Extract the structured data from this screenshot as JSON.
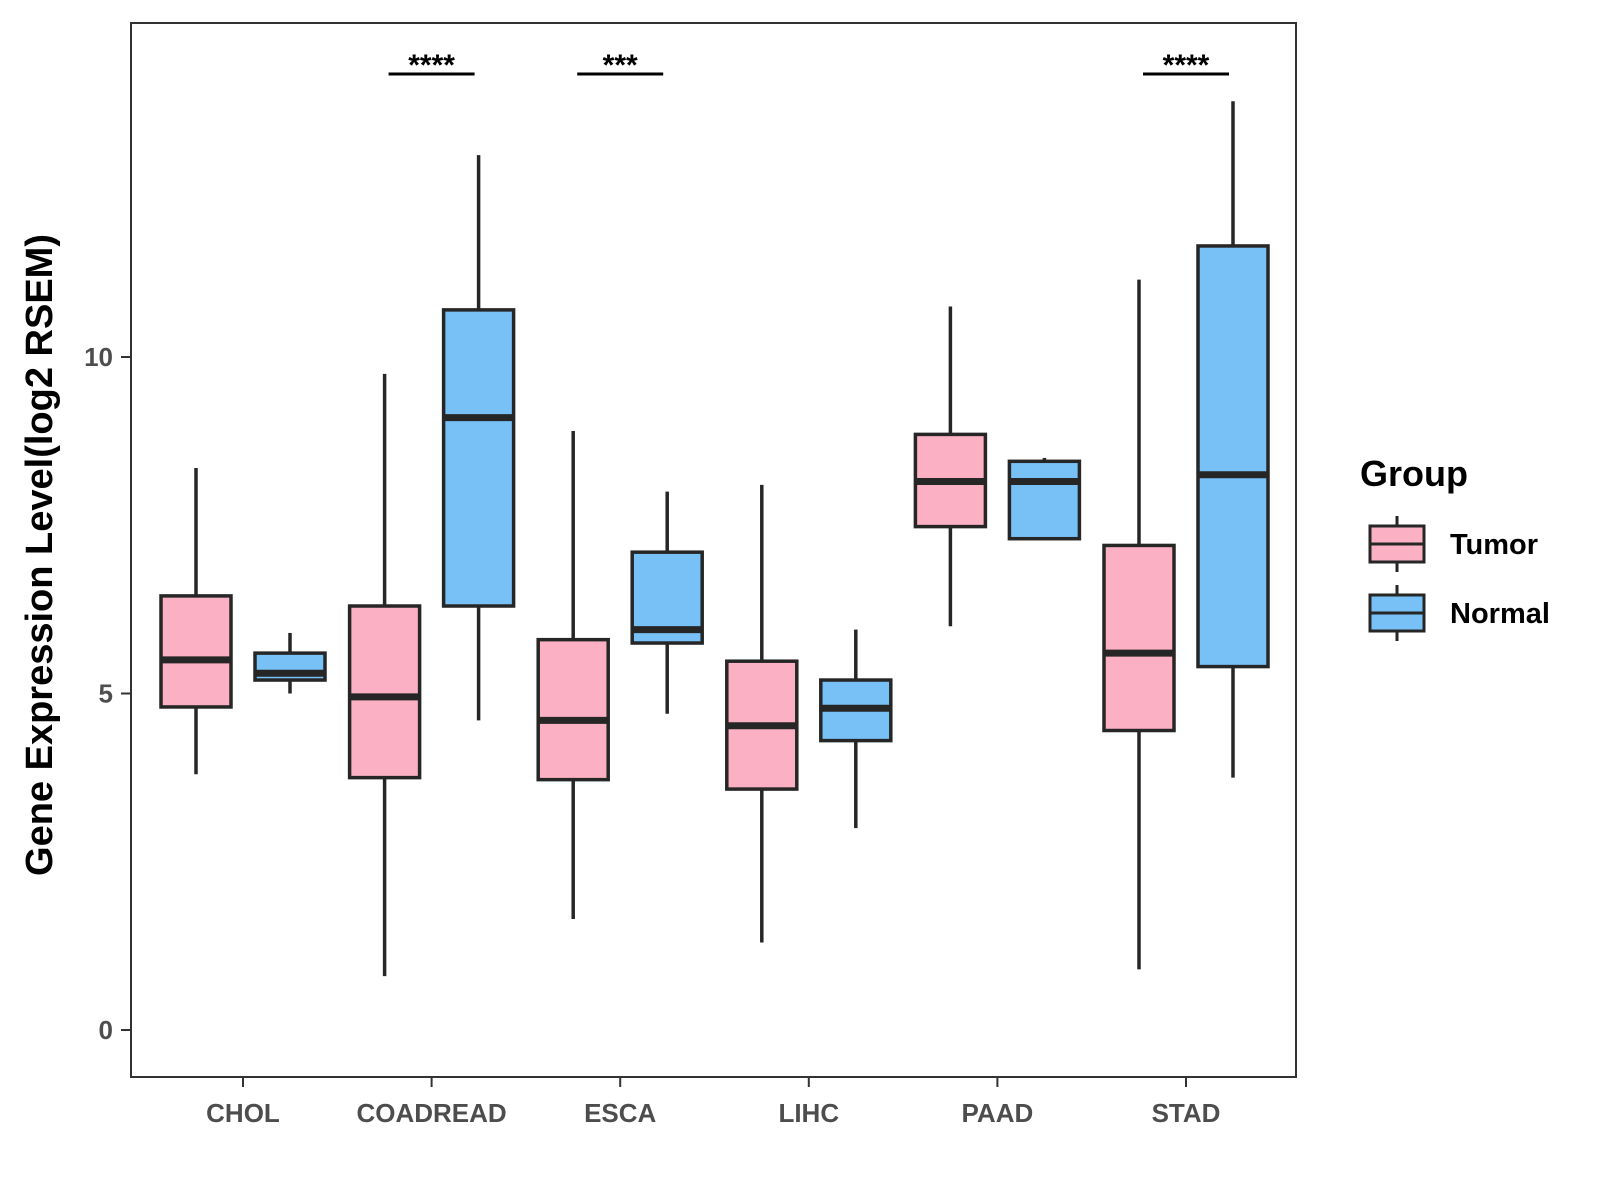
{
  "chart_data": {
    "type": "boxplot",
    "title": "",
    "xlabel": "",
    "ylabel": "Gene Expression Level(log2 RSEM)",
    "ylim": [
      -0.7,
      15
    ],
    "yticks": [
      0,
      5,
      10
    ],
    "categories": [
      "CHOL",
      "COADREAD",
      "ESCA",
      "LIHC",
      "PAAD",
      "STAD"
    ],
    "legend": {
      "title": "Group",
      "position": "right",
      "entries": [
        "Tumor",
        "Normal"
      ]
    },
    "colors": {
      "Tumor": "#FBB1C3",
      "Normal": "#77C1F7",
      "outline": "#262626"
    },
    "series": [
      {
        "name": "Tumor",
        "boxes": [
          {
            "category": "CHOL",
            "min": 3.8,
            "q1": 4.8,
            "median": 5.5,
            "q3": 6.45,
            "max": 8.35
          },
          {
            "category": "COADREAD",
            "min": 0.8,
            "q1": 3.75,
            "median": 4.95,
            "q3": 6.3,
            "max": 9.75
          },
          {
            "category": "ESCA",
            "min": 1.65,
            "q1": 3.72,
            "median": 4.6,
            "q3": 5.8,
            "max": 8.9
          },
          {
            "category": "LIHC",
            "min": 1.3,
            "q1": 3.58,
            "median": 4.52,
            "q3": 5.48,
            "max": 8.1
          },
          {
            "category": "PAAD",
            "min": 6.0,
            "q1": 7.48,
            "median": 8.15,
            "q3": 8.85,
            "max": 10.75
          },
          {
            "category": "STAD",
            "min": 0.9,
            "q1": 4.45,
            "median": 5.6,
            "q3": 7.2,
            "max": 11.15
          }
        ]
      },
      {
        "name": "Normal",
        "boxes": [
          {
            "category": "CHOL",
            "min": 5.0,
            "q1": 5.2,
            "median": 5.3,
            "q3": 5.6,
            "max": 5.9
          },
          {
            "category": "COADREAD",
            "min": 4.6,
            "q1": 6.3,
            "median": 9.1,
            "q3": 10.7,
            "max": 13.0
          },
          {
            "category": "ESCA",
            "min": 4.7,
            "q1": 5.75,
            "median": 5.95,
            "q3": 7.1,
            "max": 8.0
          },
          {
            "category": "LIHC",
            "min": 3.0,
            "q1": 4.3,
            "median": 4.78,
            "q3": 5.2,
            "max": 5.95
          },
          {
            "category": "PAAD",
            "min": 7.3,
            "q1": 7.3,
            "median": 8.15,
            "q3": 8.45,
            "max": 8.5
          },
          {
            "category": "STAD",
            "min": 3.75,
            "q1": 5.4,
            "median": 8.25,
            "q3": 11.65,
            "max": 13.8
          }
        ]
      }
    ],
    "significance": [
      {
        "category": "COADREAD",
        "label": "****"
      },
      {
        "category": "ESCA",
        "label": "***"
      },
      {
        "category": "STAD",
        "label": "****"
      }
    ]
  }
}
